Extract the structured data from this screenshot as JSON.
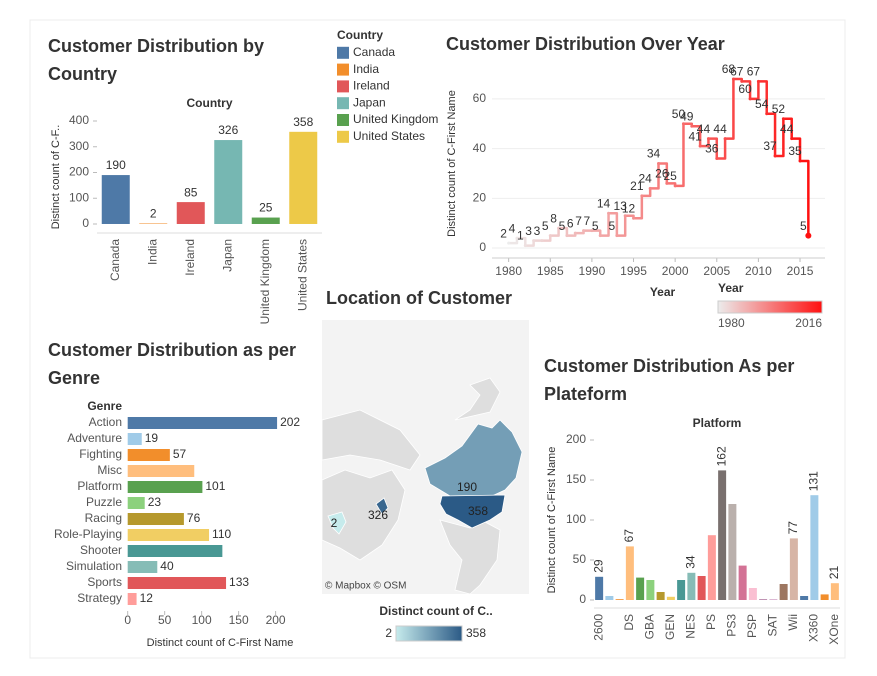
{
  "chart_data": [
    {
      "type": "bar",
      "title": "Customer Distribution by Country",
      "category_header": "Country",
      "ylabel": "Distinct count of C-F..",
      "categories": [
        "Canada",
        "India",
        "Ireland",
        "Japan",
        "United Kingdom",
        "United States"
      ],
      "values": [
        190,
        2,
        85,
        326,
        25,
        358
      ],
      "colors": [
        "#4e79a7",
        "#f28e2b",
        "#e15759",
        "#76b7b2",
        "#59a14f",
        "#edc948"
      ],
      "ylim": [
        -35,
        400
      ],
      "yticks": [
        0,
        100,
        200,
        300,
        400
      ],
      "legend_title": "Country"
    },
    {
      "type": "line",
      "step": true,
      "title": "Customer Distribution Over Year",
      "xlabel": "Year",
      "ylabel": "Distinct count of C-First Name",
      "x": [
        1980,
        1981,
        1982,
        1983,
        1984,
        1985,
        1986,
        1987,
        1988,
        1989,
        1990,
        1991,
        1992,
        1993,
        1994,
        1995,
        1996,
        1997,
        1998,
        1999,
        2000,
        2001,
        2002,
        2003,
        2004,
        2005,
        2006,
        2007,
        2008,
        2009,
        2010,
        2011,
        2012,
        2013,
        2014,
        2015,
        2016
      ],
      "values": [
        2,
        4,
        1,
        3,
        3,
        5,
        8,
        5,
        6,
        7,
        7,
        5,
        14,
        5,
        13,
        12,
        21,
        24,
        34,
        26,
        25,
        50,
        49,
        41,
        44,
        36,
        44,
        68,
        67,
        60,
        67,
        54,
        37,
        52,
        44,
        35,
        5
      ],
      "color_range": [
        "#ececec",
        "#ff1010"
      ],
      "legend_title": "Year",
      "xlim": [
        1978,
        2018
      ],
      "xticks": [
        1980,
        1985,
        1990,
        1995,
        2000,
        2005,
        2010,
        2015
      ],
      "ylim": [
        -4,
        72
      ],
      "yticks": [
        0,
        20,
        40,
        60
      ],
      "grid": true
    },
    {
      "type": "map",
      "title": "Location of Customer",
      "values": [
        190,
        326,
        358,
        2
      ],
      "attribution": "© Mapbox © OSM",
      "legend_title": "Distinct count of C..",
      "colorlim": [
        2,
        358
      ],
      "color_range": [
        "#c6ebec",
        "#2b5a86"
      ]
    },
    {
      "type": "hbar",
      "title": "Customer Distribution as per Genre",
      "category_header": "Genre",
      "xlabel": "Distinct count of C-First Name",
      "categories": [
        "Action",
        "Adventure",
        "Fighting",
        "Misc",
        "Platform",
        "Puzzle",
        "Racing",
        "Role-Playing",
        "Shooter",
        "Simulation",
        "Sports",
        "Strategy"
      ],
      "values": [
        202,
        19,
        57,
        90,
        101,
        23,
        76,
        110,
        128,
        40,
        133,
        12
      ],
      "value_labels": [
        "202",
        "19",
        "57",
        null,
        "101",
        "23",
        "76",
        "110",
        null,
        "40",
        "133",
        "12"
      ],
      "colors": [
        "#4e79a7",
        "#a0cbe8",
        "#f28e2b",
        "#ffbe7d",
        "#59a14f",
        "#8cd17d",
        "#b6992d",
        "#f1ce63",
        "#499894",
        "#86bcb6",
        "#e15759",
        "#ff9d9a"
      ],
      "xlim": [
        -5,
        233
      ],
      "xticks": [
        0,
        50,
        100,
        150,
        200
      ]
    },
    {
      "type": "bar",
      "title": "Customer Distribution As per Plateform",
      "category_header": "Platform",
      "ylabel": "Distinct count of C-First Name",
      "categories": [
        "2600",
        null,
        null,
        "DS",
        null,
        "GBA",
        null,
        "GEN",
        null,
        "NES",
        null,
        "PS",
        null,
        "PS3",
        null,
        "PSP",
        null,
        "SAT",
        null,
        "Wii",
        null,
        "X360",
        null,
        "XOne"
      ],
      "values": [
        29,
        5,
        1,
        67,
        28,
        25,
        10,
        4,
        25,
        34,
        30,
        81,
        162,
        120,
        43,
        15,
        1,
        1,
        20,
        77,
        5,
        131,
        7,
        21
      ],
      "value_labels": [
        "29",
        null,
        null,
        "67",
        null,
        null,
        null,
        null,
        null,
        "34",
        null,
        null,
        "162",
        null,
        null,
        null,
        null,
        null,
        null,
        "77",
        null,
        "131",
        null,
        "21"
      ],
      "colors": [
        "#4e79a7",
        "#a0cbe8",
        "#f28e2b",
        "#ffbe7d",
        "#59a14f",
        "#8cd17d",
        "#b6992d",
        "#f1ce63",
        "#499894",
        "#86bcb6",
        "#e15759",
        "#ff9d9a",
        "#79706e",
        "#bab0ac",
        "#d37295",
        "#fabfd2",
        "#b07aa1",
        "#d4a6c8",
        "#9d7660",
        "#d7b5a6",
        "#4e79a7",
        "#a0cbe8",
        "#f28e2b",
        "#ffbe7d"
      ],
      "ylim": [
        -10,
        210
      ],
      "yticks": [
        0,
        50,
        100,
        150,
        200
      ]
    }
  ]
}
